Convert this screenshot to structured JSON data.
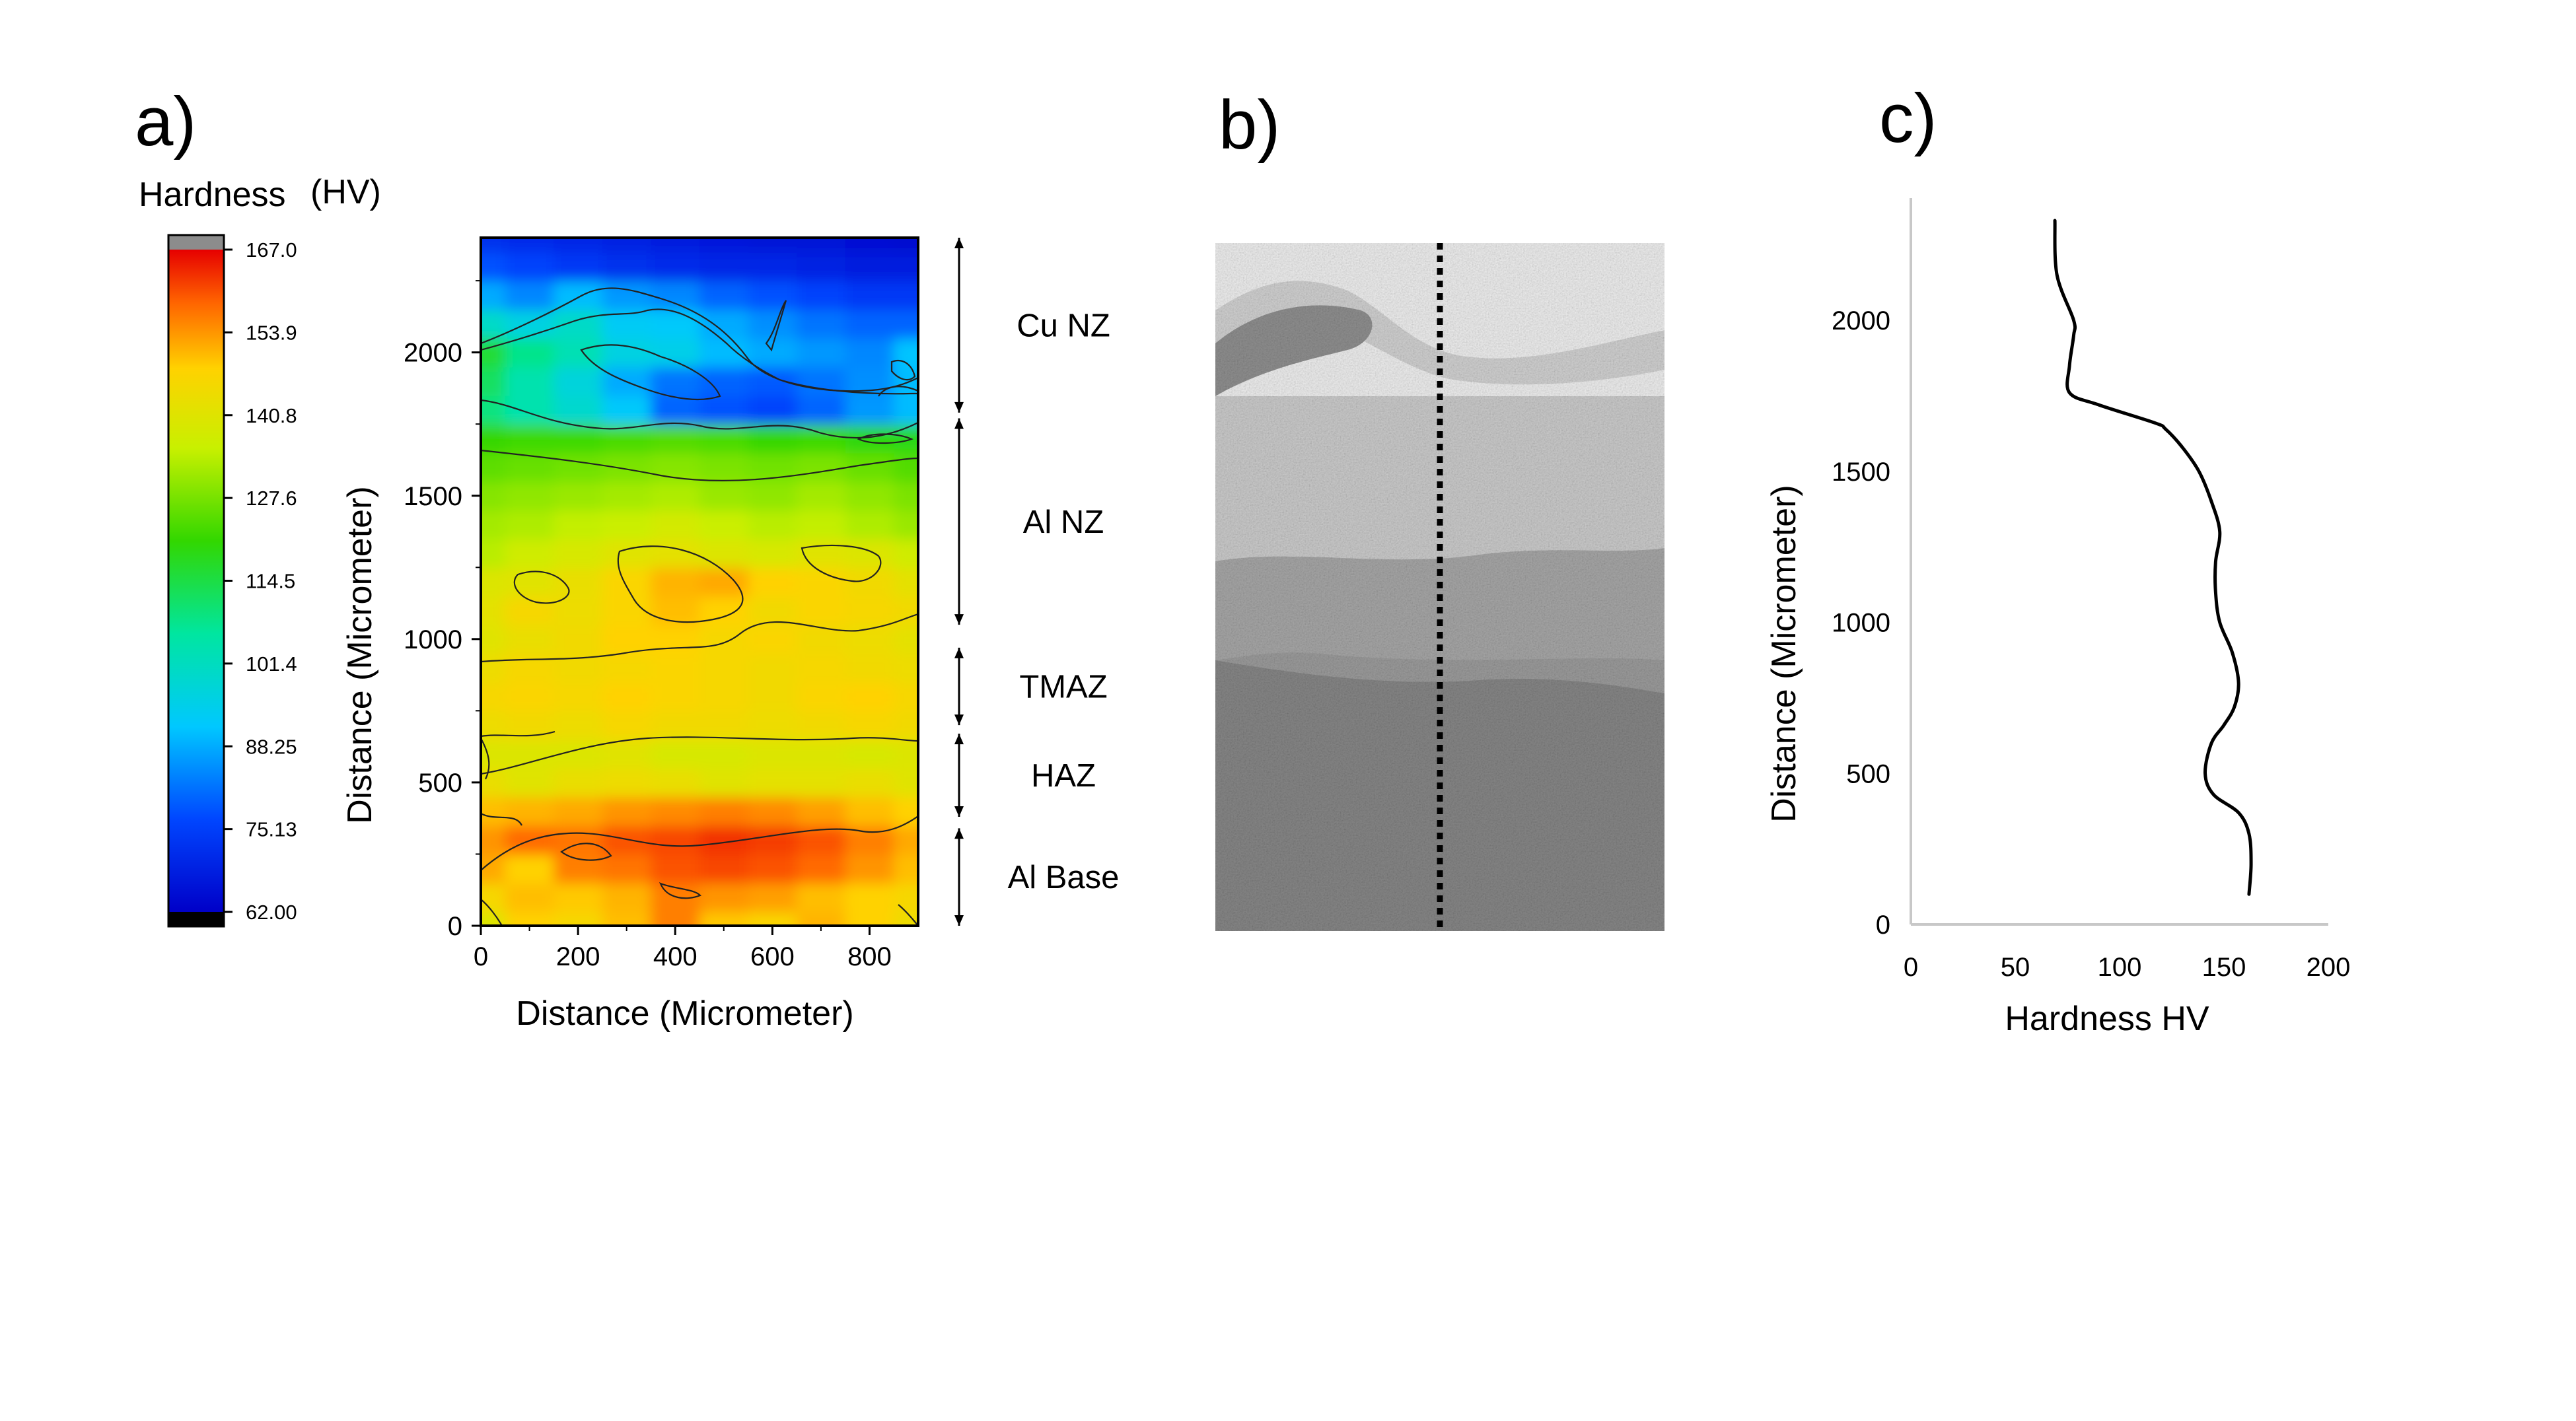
{
  "panel_labels": [
    "a)",
    "b)",
    "c)"
  ],
  "colorbar": {
    "title": "Hardness",
    "unit": "(HV)",
    "ticks": [
      "167.0",
      "153.9",
      "140.8",
      "127.6",
      "114.5",
      "101.4",
      "88.25",
      "75.13",
      "62.00"
    ],
    "min": 62.0,
    "max": 167.0
  },
  "zones": [
    {
      "label": "Cu NZ",
      "from": 1790,
      "to": 2400
    },
    {
      "label": "Al NZ",
      "from": 1050,
      "to": 1770
    },
    {
      "label": "TMAZ",
      "from": 700,
      "to": 970
    },
    {
      "label": "HAZ",
      "from": 380,
      "to": 670
    },
    {
      "label": "Al Base",
      "from": 0,
      "to": 340
    }
  ],
  "micrograph": {
    "description_colors": {
      "light": "#e4e4e4",
      "mid": "#c6c6c6",
      "dark": "#8c8c8c"
    },
    "dotted_line_color": "#000000"
  },
  "chart_data": [
    {
      "type": "heatmap",
      "panel": "a)",
      "xlabel": "Distance  (Micrometer)",
      "ylabel": "Distance  (Micrometer)",
      "xlim": [
        0,
        900
      ],
      "ylim": [
        0,
        2400
      ],
      "xticks": [
        0,
        200,
        400,
        600,
        800
      ],
      "yticks": [
        0,
        500,
        1000,
        1500,
        2000
      ],
      "x": [
        0,
        100,
        200,
        300,
        400,
        500,
        600,
        700,
        800,
        900
      ],
      "y": [
        0,
        100,
        200,
        300,
        400,
        500,
        600,
        700,
        800,
        900,
        1000,
        1100,
        1200,
        1300,
        1400,
        1500,
        1600,
        1700,
        1800,
        1900,
        2000,
        2100,
        2200,
        2300,
        2400
      ],
      "values": [
        [
          140,
          148,
          146,
          150,
          156,
          149,
          147,
          151,
          148,
          144
        ],
        [
          146,
          150,
          149,
          151,
          156,
          154,
          153,
          150,
          148,
          146
        ],
        [
          152,
          148,
          156,
          157,
          160,
          161,
          160,
          158,
          154,
          150
        ],
        [
          154,
          158,
          157,
          160,
          161,
          163,
          162,
          160,
          156,
          152
        ],
        [
          150,
          151,
          152,
          154,
          155,
          156,
          155,
          153,
          150,
          148
        ],
        [
          143,
          141,
          143,
          144,
          143,
          141,
          142,
          142,
          143,
          141
        ],
        [
          140,
          140,
          140,
          141,
          139,
          139,
          140,
          140,
          139,
          140
        ],
        [
          144,
          145,
          144,
          146,
          145,
          145,
          144,
          145,
          146,
          145
        ],
        [
          146,
          147,
          146,
          148,
          147,
          146,
          145,
          147,
          148,
          146
        ],
        [
          144,
          146,
          145,
          146,
          147,
          146,
          145,
          146,
          145,
          144
        ],
        [
          141,
          143,
          145,
          148,
          148,
          146,
          147,
          145,
          144,
          142
        ],
        [
          142,
          146,
          144,
          147,
          150,
          148,
          145,
          147,
          146,
          145
        ],
        [
          140,
          141,
          143,
          147,
          151,
          152,
          148,
          147,
          145,
          142
        ],
        [
          134,
          137,
          139,
          141,
          142,
          140,
          139,
          141,
          140,
          137
        ],
        [
          132,
          133,
          135,
          136,
          138,
          136,
          134,
          135,
          133,
          131
        ],
        [
          129,
          130,
          131,
          132,
          133,
          131,
          130,
          132,
          130,
          128
        ],
        [
          125,
          126,
          127,
          128,
          129,
          128,
          127,
          128,
          126,
          124
        ],
        [
          121,
          122,
          122,
          123,
          124,
          123,
          121,
          122,
          120,
          119
        ],
        [
          109,
          104,
          99,
          92,
          80,
          78,
          76,
          80,
          86,
          90
        ],
        [
          112,
          104,
          97,
          88,
          82,
          80,
          79,
          82,
          85,
          90
        ],
        [
          116,
          108,
          103,
          96,
          95,
          90,
          88,
          86,
          84,
          91
        ],
        [
          100,
          96,
          100,
          93,
          92,
          88,
          85,
          82,
          80,
          80
        ],
        [
          88,
          84,
          90,
          86,
          84,
          80,
          78,
          76,
          74,
          74
        ],
        [
          78,
          76,
          74,
          72,
          71,
          70,
          70,
          69,
          68,
          68
        ],
        [
          72,
          71,
          70,
          69,
          68,
          67,
          66,
          66,
          65,
          64
        ]
      ]
    },
    {
      "type": "line",
      "panel": "c)",
      "xlabel": "Hardness HV",
      "ylabel": "Distance  (Micrometer)",
      "xlim": [
        0,
        200
      ],
      "ylim": [
        0,
        2400
      ],
      "xticks": [
        0,
        50,
        100,
        150,
        200
      ],
      "yticks": [
        0,
        500,
        1000,
        1500,
        2000
      ],
      "grid": false,
      "series": [
        {
          "x": [
            162,
            163,
            162,
            157,
            145,
            141,
            144,
            150,
            155,
            157,
            154,
            148,
            146,
            146,
            148,
            144,
            138,
            130,
            122,
            117,
            90,
            76,
            76,
            78,
            78,
            70,
            69
          ],
          "y": [
            100,
            200,
            300,
            370,
            430,
            500,
            600,
            660,
            720,
            800,
            900,
            1000,
            1100,
            1200,
            1300,
            1400,
            1500,
            1580,
            1640,
            1660,
            1720,
            1760,
            1850,
            1950,
            2000,
            2150,
            2330
          ]
        }
      ]
    }
  ]
}
